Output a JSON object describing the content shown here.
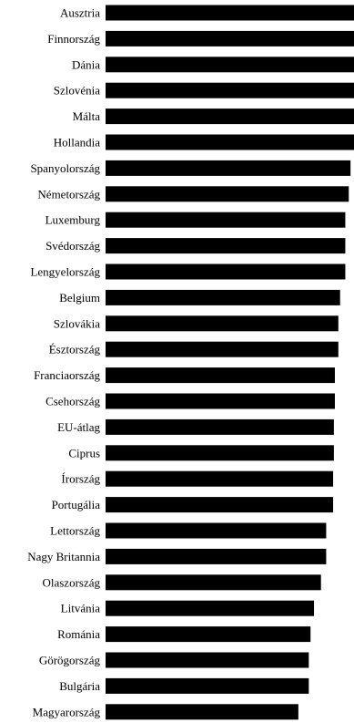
{
  "chart_data": {
    "type": "bar",
    "orientation": "horizontal",
    "title": "",
    "xlabel": "",
    "ylabel": "",
    "grid": false,
    "legend": "none",
    "bar_color": "#000000",
    "xlim": [
      0,
      100
    ],
    "categories": [
      "Ausztria",
      "Finnország",
      "Dánia",
      "Szlovénia",
      "Málta",
      "Hollandia",
      "Spanyolország",
      "Németország",
      "Luxemburg",
      "Svédország",
      "Lengyelország",
      "Belgium",
      "Szlovákia",
      "Észtország",
      "Franciaország",
      "Csehország",
      "EU-átlag",
      "Ciprus",
      "Írország",
      "Portugália",
      "Lettország",
      "Nagy Britannia",
      "Olaszország",
      "Litvánia",
      "Románia",
      "Görögország",
      "Bulgária",
      "Magyarország"
    ],
    "values": [
      100,
      100,
      100,
      100,
      100,
      100,
      98.6,
      97.9,
      96.5,
      96.5,
      96.5,
      94.4,
      93.7,
      93.7,
      92.3,
      92.3,
      91.9,
      91.9,
      91.6,
      91.6,
      88.8,
      88.8,
      86.7,
      83.9,
      82.5,
      81.8,
      81.8,
      77.6
    ]
  }
}
